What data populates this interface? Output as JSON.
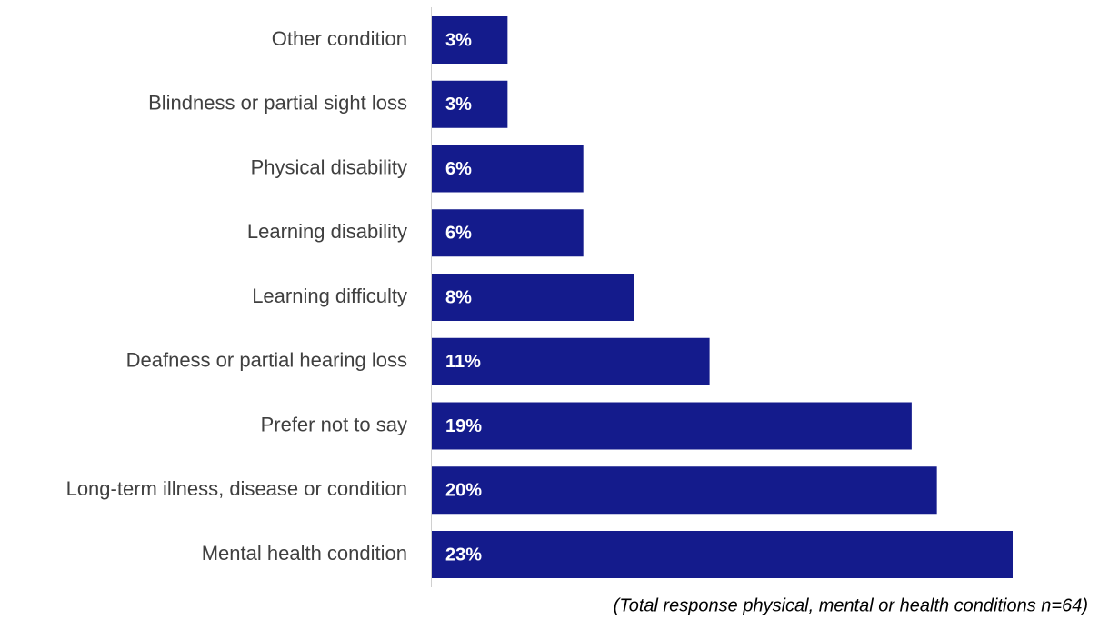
{
  "chart_data": {
    "type": "bar",
    "orientation": "horizontal",
    "categories": [
      "Other condition",
      "Blindness or partial sight loss",
      "Physical disability",
      "Learning disability",
      "Learning difficulty",
      "Deafness or partial hearing loss",
      "Prefer not to say",
      "Long-term illness, disease or condition",
      "Mental health condition"
    ],
    "values": [
      3,
      3,
      6,
      6,
      8,
      11,
      19,
      20,
      23
    ],
    "value_labels": [
      "3%",
      "3%",
      "6%",
      "6%",
      "8%",
      "11%",
      "19%",
      "20%",
      "23%"
    ],
    "color": "#141b8c",
    "annotation": "(Total response physical, mental or health conditions  n=64)"
  }
}
